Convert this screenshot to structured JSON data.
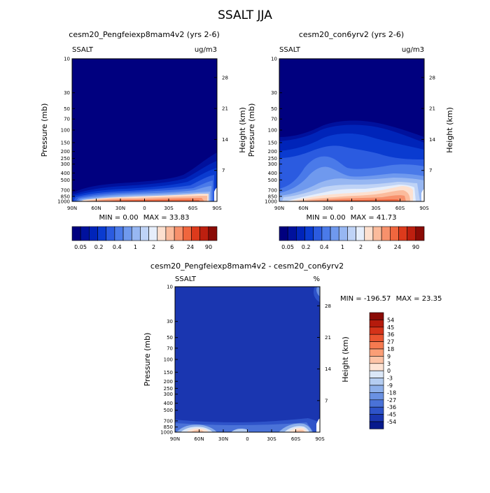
{
  "page_title": "SSALT JJA",
  "chart_data": [
    {
      "type": "heatmap",
      "title": "cesm20_Pengfeiexp8mam4v2 (yrs 2-6)",
      "variable_label": "SSALT",
      "units_label": "ug/m3",
      "ylabel": "Pressure (mb)",
      "y2label": "Height (km)",
      "x_ticks": [
        "90N",
        "60N",
        "30N",
        "0",
        "30S",
        "60S",
        "90S"
      ],
      "y_ticks": [
        "10",
        "30",
        "50",
        "70",
        "100",
        "150",
        "200",
        "250",
        "300",
        "400",
        "500",
        "700",
        "850",
        "1000"
      ],
      "y2_ticks": [
        "28",
        "21",
        "14",
        "7"
      ],
      "stats": {
        "min_label": "MIN =",
        "min": "0.00",
        "max_label": "MAX =",
        "max": "33.83"
      },
      "colorbar_labels": [
        "0.05",
        "0.2",
        "0.4",
        "1",
        "2",
        "6",
        "24",
        "90"
      ]
    },
    {
      "type": "heatmap",
      "title": "cesm20_con6yrv2 (yrs 2-6)",
      "variable_label": "SSALT",
      "units_label": "ug/m3",
      "ylabel": "Pressure (mb)",
      "y2label": "Height (km)",
      "x_ticks": [
        "90N",
        "60N",
        "30N",
        "0",
        "30S",
        "60S",
        "90S"
      ],
      "y_ticks": [
        "10",
        "30",
        "50",
        "70",
        "100",
        "150",
        "200",
        "250",
        "300",
        "400",
        "500",
        "700",
        "850",
        "1000"
      ],
      "y2_ticks": [
        "28",
        "21",
        "14",
        "7"
      ],
      "stats": {
        "min_label": "MIN =",
        "min": "0.00",
        "max_label": "MAX =",
        "max": "41.73"
      },
      "colorbar_labels": [
        "0.05",
        "0.2",
        "0.4",
        "1",
        "2",
        "6",
        "24",
        "90"
      ]
    },
    {
      "type": "heatmap",
      "title": "cesm20_Pengfeiexp8mam4v2 - cesm20_con6yrv2",
      "variable_label": "SSALT",
      "units_label": "%",
      "ylabel": "Pressure (mb)",
      "y2label": "Height (km)",
      "x_ticks": [
        "90N",
        "60N",
        "30N",
        "0",
        "30S",
        "60S",
        "90S"
      ],
      "y_ticks": [
        "10",
        "30",
        "50",
        "70",
        "100",
        "150",
        "200",
        "250",
        "300",
        "400",
        "500",
        "700",
        "850",
        "1000"
      ],
      "y2_ticks": [
        "28",
        "21",
        "14",
        "7"
      ],
      "stats": {
        "min_label": "MIN =",
        "min": "-196.57",
        "max_label": "MAX =",
        "max": "23.35"
      },
      "colorbar_labels": [
        "54",
        "45",
        "36",
        "27",
        "18",
        "9",
        "3",
        "0",
        "-3",
        "-9",
        "-18",
        "-27",
        "-36",
        "-45",
        "-54"
      ]
    }
  ],
  "palettes": {
    "abs": [
      "#00007f",
      "#00119d",
      "#0024b9",
      "#0a3bd0",
      "#2b5be0",
      "#4a7ae9",
      "#6f99ee",
      "#97b7f2",
      "#bfd3f6",
      "#e6eefb",
      "#fde0cf",
      "#fbbb9c",
      "#f7916c",
      "#f0663e",
      "#dd3a1c",
      "#bd1f0f",
      "#8a0b06"
    ],
    "diff": [
      "#8a0b06",
      "#b51a0c",
      "#d43319",
      "#ea5530",
      "#f67a50",
      "#fb9e76",
      "#fdc3a6",
      "#fee4d5",
      "#dbe7f7",
      "#b5cdf1",
      "#8eb0ea",
      "#6a91e2",
      "#4a72d8",
      "#2e53c9",
      "#1a36b0",
      "#071a8c"
    ]
  }
}
